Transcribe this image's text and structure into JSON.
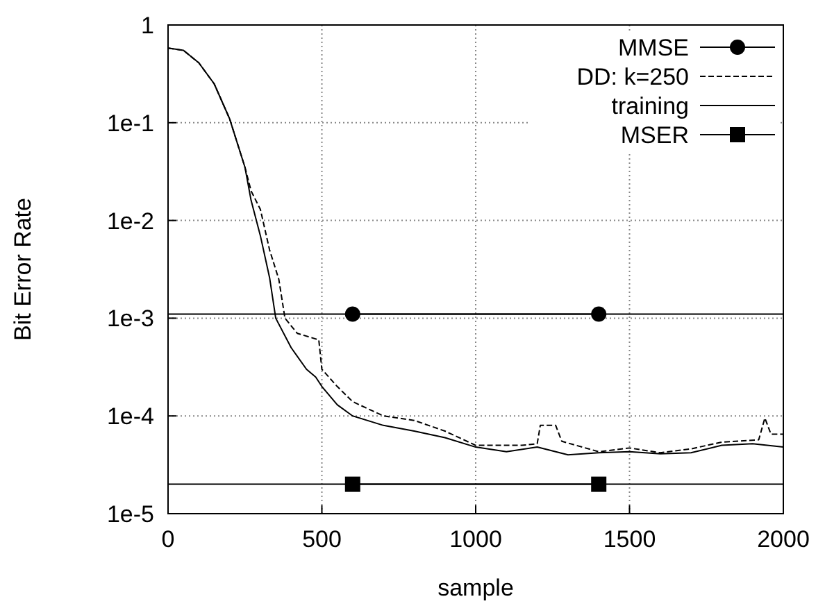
{
  "chart_data": {
    "type": "line",
    "xlabel": "sample",
    "ylabel": "Bit Error Rate",
    "log": "y",
    "grid": true,
    "legend": "top right",
    "xlim": [
      0,
      2000
    ],
    "xticks": [
      0,
      500,
      1000,
      1500,
      2000
    ],
    "ylim": [
      1e-05,
      1
    ],
    "yticks": [
      {
        "value": 1,
        "label": "1"
      },
      {
        "value": 0.1,
        "label": "1e-1"
      },
      {
        "value": 0.01,
        "label": "1e-2"
      },
      {
        "value": 0.001,
        "label": "1e-3"
      },
      {
        "value": 0.0001,
        "label": "1e-4"
      },
      {
        "value": 1e-05,
        "label": "1e-5"
      }
    ],
    "ref_lines": [
      {
        "axis": "y",
        "value": 0.0011,
        "color": "#000000",
        "line_style": "solid"
      },
      {
        "axis": "y",
        "value": 2e-05,
        "color": "#000000",
        "line_style": "solid"
      }
    ],
    "series": [
      {
        "name": "MMSE",
        "color": "#000000",
        "marker": "circle",
        "line_style": "solid",
        "x": [
          600,
          1400
        ],
        "values": [
          0.0011,
          0.0011
        ]
      },
      {
        "name": "DD: k=250",
        "color": "#000000",
        "marker": "none",
        "line_style": "dashed",
        "x": [
          0,
          50,
          100,
          150,
          200,
          250,
          270,
          300,
          330,
          360,
          380,
          420,
          490,
          500,
          550,
          600,
          700,
          800,
          900,
          1000,
          1150,
          1200,
          1210,
          1260,
          1280,
          1400,
          1500,
          1600,
          1700,
          1800,
          1920,
          1940,
          1960,
          2000
        ],
        "values": [
          0.58,
          0.55,
          0.41,
          0.25,
          0.11,
          0.035,
          0.02,
          0.013,
          0.005,
          0.0025,
          0.001,
          0.0007,
          0.0006,
          0.0003,
          0.0002,
          0.00014,
          0.0001,
          9e-05,
          7e-05,
          5e-05,
          5e-05,
          5.2e-05,
          8e-05,
          8e-05,
          5.5e-05,
          4.3e-05,
          4.7e-05,
          4.2e-05,
          4.6e-05,
          5.4e-05,
          5.7e-05,
          9.5e-05,
          6.5e-05,
          6.5e-05
        ]
      },
      {
        "name": "training",
        "color": "#000000",
        "marker": "none",
        "line_style": "solid",
        "x": [
          0,
          50,
          100,
          150,
          200,
          250,
          270,
          300,
          330,
          350,
          400,
          450,
          480,
          500,
          550,
          600,
          700,
          800,
          900,
          1000,
          1100,
          1200,
          1300,
          1400,
          1500,
          1600,
          1700,
          1800,
          1900,
          2000
        ],
        "values": [
          0.58,
          0.55,
          0.41,
          0.25,
          0.11,
          0.035,
          0.016,
          0.007,
          0.0026,
          0.001,
          0.0005,
          0.0003,
          0.00025,
          0.0002,
          0.00013,
          0.0001,
          8e-05,
          7e-05,
          6e-05,
          4.8e-05,
          4.3e-05,
          4.8e-05,
          4e-05,
          4.2e-05,
          4.3e-05,
          4.1e-05,
          4.2e-05,
          5e-05,
          5.2e-05,
          4.8e-05
        ]
      },
      {
        "name": "MSER",
        "color": "#000000",
        "marker": "square",
        "line_style": "solid",
        "x": [
          600,
          1400
        ],
        "values": [
          2e-05,
          2e-05
        ]
      }
    ]
  }
}
